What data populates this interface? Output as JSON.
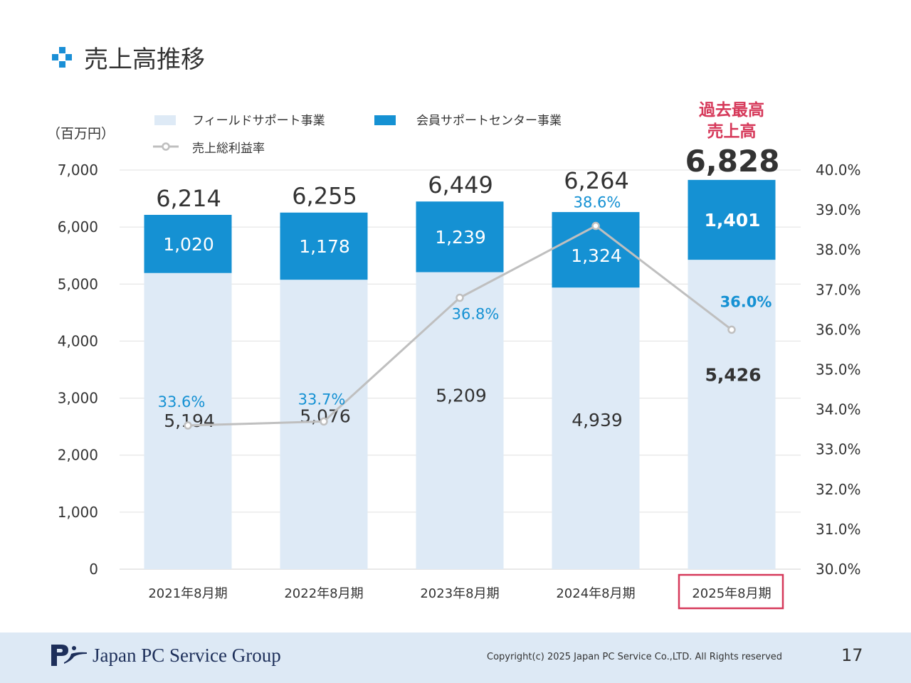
{
  "title": "売上高推移",
  "colors": {
    "field": "#deeaf6",
    "member": "#1591d3",
    "line": "#bfbfbf",
    "pct_label": "#1591d3",
    "highlight": "#d6395a",
    "title_icon": "#1a8fd6",
    "footer_bg": "#dde9f5"
  },
  "chart_data": {
    "type": "bar",
    "stacked": true,
    "unit_label": "（百万円）",
    "categories": [
      "2021年8月期",
      "2022年8月期",
      "2023年8月期",
      "2024年8月期",
      "2025年8月期"
    ],
    "series": [
      {
        "name": "フィールドサポート事業",
        "values": [
          5194,
          5076,
          5209,
          4939,
          5426
        ]
      },
      {
        "name": "会員サポートセンター事業",
        "values": [
          1020,
          1178,
          1239,
          1324,
          1401
        ]
      }
    ],
    "totals": [
      6214,
      6255,
      6449,
      6264,
      6828
    ],
    "line_series": {
      "name": "売上総利益率",
      "type": "line",
      "axis": "right",
      "values": [
        33.6,
        33.7,
        36.8,
        38.6,
        36.0
      ]
    },
    "ylim": [
      0,
      7000
    ],
    "yticks": [
      "0",
      "1,000",
      "2,000",
      "3,000",
      "4,000",
      "5,000",
      "6,000",
      "7,000"
    ],
    "y2lim": [
      30,
      40
    ],
    "y2ticks": [
      "30.0%",
      "31.0%",
      "32.0%",
      "33.0%",
      "34.0%",
      "35.0%",
      "36.0%",
      "37.0%",
      "38.0%",
      "39.0%",
      "40.0%"
    ],
    "grid": true,
    "legend_position": "top",
    "annotation": {
      "lines": [
        "過去最高",
        "売上高"
      ],
      "category": "2025年8月期"
    },
    "highlight_category": "2025年8月期"
  },
  "footer": {
    "company": "Japan PC Service Group",
    "copyright": "Copyright(c) 2025 Japan PC Service Co.,LTD. All Rights reserved",
    "page": "17"
  }
}
